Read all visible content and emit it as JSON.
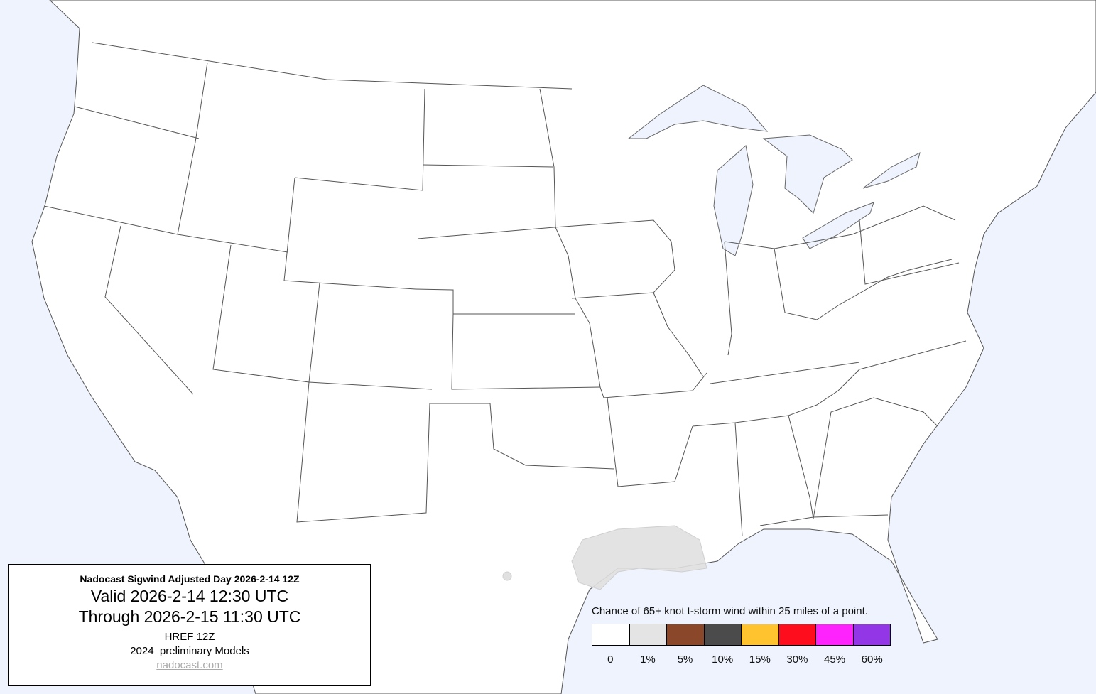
{
  "info_box": {
    "title": "Nadocast Sigwind Adjusted Day 2026-2-14 12Z",
    "valid": "Valid 2026-2-14 12:30 UTC",
    "through": "Through 2026-2-15 11:30 UTC",
    "model": "HREF 12Z",
    "models_version": "2024_preliminary Models",
    "link": "nadocast.com"
  },
  "legend": {
    "title": "Chance of 65+ knot t-storm wind within 25 miles of a point.",
    "bins": [
      {
        "label": "0",
        "color": "#ffffff"
      },
      {
        "label": "1%",
        "color": "#e4e4e4"
      },
      {
        "label": "5%",
        "color": "#8b472a"
      },
      {
        "label": "10%",
        "color": "#4b4b4b"
      },
      {
        "label": "15%",
        "color": "#fec32e"
      },
      {
        "label": "30%",
        "color": "#fe0d1c"
      },
      {
        "label": "45%",
        "color": "#fe22fd"
      },
      {
        "label": "60%",
        "color": "#9236e6"
      }
    ]
  },
  "map": {
    "ocean_color": "#eef3fd",
    "land_color": "#ffffff",
    "forecast_area": {
      "category": "1%",
      "region": "Gulf Coast (Louisiana / upper Texas coast)"
    }
  }
}
